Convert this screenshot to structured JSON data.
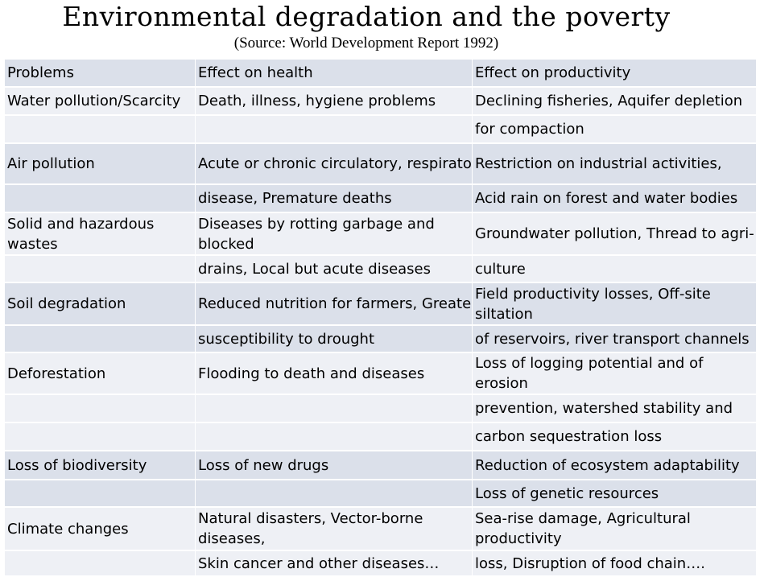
{
  "title": "Environmental degradation and the poverty",
  "subtitle": "(Source: World Development Report 1992)",
  "table": {
    "headers": [
      "Problems",
      "Effect on health",
      "Effect on productivity"
    ],
    "rows": [
      [
        "Water pollution/Scarcity",
        "Death, illness, hygiene problems",
        "Declining fisheries, Aquifer depletion"
      ],
      [
        "",
        "",
        "for compaction"
      ],
      [
        "Air pollution",
        "Acute or chronic circulatory, respiratory",
        "Restriction on industrial activities,"
      ],
      [
        "",
        "disease, Premature deaths",
        "Acid rain on forest and water bodies"
      ],
      [
        "Solid and hazardous wastes",
        "Diseases by rotting garbage and blocked",
        "Groundwater pollution, Thread to agri-"
      ],
      [
        "",
        "drains, Local but acute diseases",
        "culture"
      ],
      [
        "Soil degradation",
        "Reduced nutrition for farmers, Greater",
        "Field productivity losses, Off-site siltation"
      ],
      [
        "",
        "susceptibility to drought",
        "of reservoirs, river transport channels"
      ],
      [
        "Deforestation",
        "Flooding to death and diseases",
        "Loss of logging potential and of erosion"
      ],
      [
        "",
        "",
        "prevention, watershed stability and"
      ],
      [
        "",
        "",
        "carbon sequestration loss"
      ],
      [
        "Loss of biodiversity",
        "Loss of new drugs",
        "Reduction of ecosystem adaptability"
      ],
      [
        "",
        "",
        "Loss of genetic resources"
      ],
      [
        "Climate changes",
        "Natural disasters, Vector-borne diseases,",
        "Sea-rise damage, Agricultural productivity"
      ],
      [
        "",
        "Skin cancer and other diseases…",
        "loss, Disruption of food chain…."
      ]
    ]
  }
}
